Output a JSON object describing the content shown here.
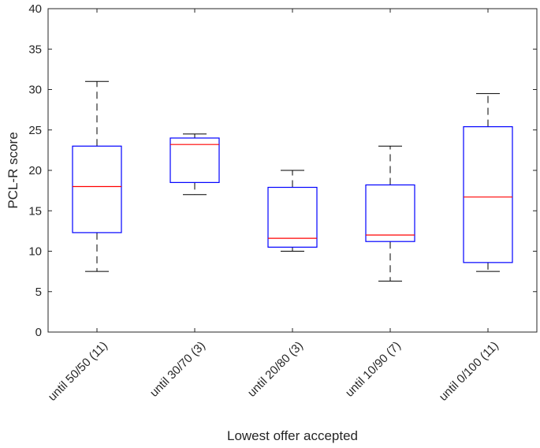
{
  "chart_data": {
    "type": "boxplot",
    "title": "",
    "xlabel": "Lowest offer accepted",
    "ylabel": "PCL-R score",
    "ylim": [
      0,
      40
    ],
    "yticks": [
      0,
      5,
      10,
      15,
      20,
      25,
      30,
      35,
      40
    ],
    "grid": false,
    "categories": [
      "until 50/50 (11)",
      "until 30/70 (3)",
      "until 20/80 (3)",
      "until 10/90 (7)",
      "until 0/100 (11)"
    ],
    "boxes": [
      {
        "category": "until 50/50 (11)",
        "whisker_low": 7.5,
        "q1": 12.3,
        "median": 18.0,
        "q3": 23.0,
        "whisker_high": 31.0
      },
      {
        "category": "until 30/70 (3)",
        "whisker_low": 17.0,
        "q1": 18.5,
        "median": 23.2,
        "q3": 24.0,
        "whisker_high": 24.5
      },
      {
        "category": "until 20/80 (3)",
        "whisker_low": 10.0,
        "q1": 10.5,
        "median": 11.6,
        "q3": 17.9,
        "whisker_high": 20.0
      },
      {
        "category": "until 10/90 (7)",
        "whisker_low": 6.3,
        "q1": 11.2,
        "median": 12.0,
        "q3": 18.2,
        "whisker_high": 23.0
      },
      {
        "category": "until 0/100 (11)",
        "whisker_low": 7.5,
        "q1": 8.6,
        "median": 16.7,
        "q3": 25.4,
        "whisker_high": 29.5
      }
    ]
  },
  "colors": {
    "box": "#0000ff",
    "median": "#ff0000",
    "whisker": "#000000",
    "axis": "#262626"
  }
}
